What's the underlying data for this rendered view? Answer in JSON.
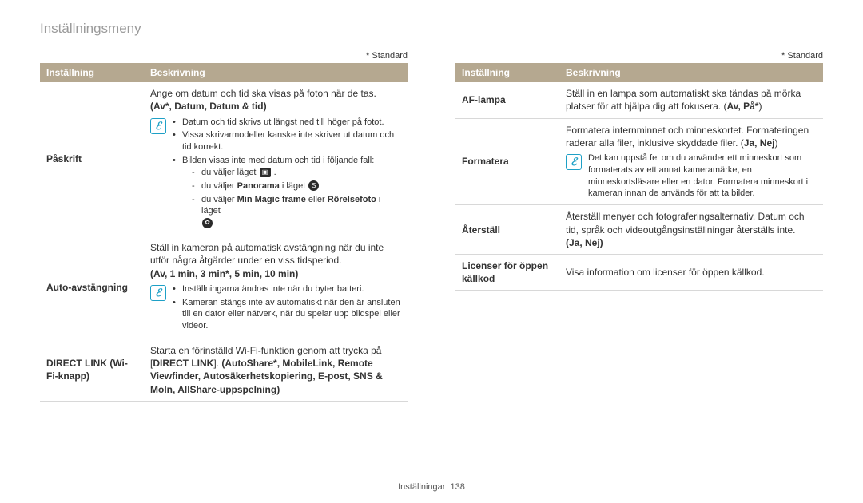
{
  "page": {
    "title": "Inställningsmeny",
    "footer_label": "Inställningar",
    "footer_page": "138"
  },
  "standard_note": "* Standard",
  "headers": {
    "setting": "Inställning",
    "description": "Beskrivning"
  },
  "left": {
    "row1": {
      "name": "Påskrift",
      "desc": "Ange om datum och tid ska visas på foton när de tas.",
      "options": "(Av*, Datum, Datum & tid)",
      "note1": "Datum och tid skrivs ut längst ned till höger på fotot.",
      "note2": "Vissa skrivarmodeller kanske inte skriver ut datum och tid korrekt.",
      "note3": "Bilden visas inte med datum och tid i följande fall:",
      "sub1a": "du väljer läget ",
      "sub2a": "du väljer ",
      "sub2b": "Panorama",
      "sub2c": " i läget ",
      "sub3a": "du väljer ",
      "sub3b": "Min Magic frame",
      "sub3c": " eller ",
      "sub3d": "Rörelsefoto",
      "sub3e": " i läget "
    },
    "row2": {
      "name": "Auto-avstängning",
      "desc": "Ställ in kameran på automatisk avstängning när du inte utför några åtgärder under en viss tidsperiod.",
      "options": "(Av, 1 min, 3 min*, 5 min, 10 min)",
      "note1": "Inställningarna ändras inte när du byter batteri.",
      "note2": "Kameran stängs inte av automatiskt när den är ansluten till en dator eller nätverk, när du spelar upp bildspel eller videor."
    },
    "row3": {
      "name": "DIRECT LINK (Wi-Fi-knapp)",
      "desc_a": "Starta en förinställd Wi-Fi-funktion genom att trycka på [",
      "desc_b": "DIRECT LINK",
      "desc_c": "]. ",
      "opts1": "(AutoShare*, MobileLink, Remote Viewfinder, Autosäkerhetskopiering, E-post, SNS & Moln, AllShare-uppspelning)"
    }
  },
  "right": {
    "row1": {
      "name": "AF-lampa",
      "desc": "Ställ in en lampa som automatiskt ska tändas på mörka platser för att hjälpa dig att fokusera. (",
      "opts": "Av, På*",
      "close": ")"
    },
    "row2": {
      "name": "Formatera",
      "desc": "Formatera internminnet och minneskortet. Formateringen raderar alla filer, inklusive skyddade filer. (",
      "opts": "Ja, Nej",
      "close": ")",
      "note": "Det kan uppstå fel om du använder ett minneskort som formaterats av ett annat kameramärke, en minneskortsläsare eller en dator. Formatera minneskort i kameran innan de används för att ta bilder."
    },
    "row3": {
      "name": "Återställ",
      "desc": "Återställ menyer och fotograferingsalternativ. Datum och tid, språk och videoutgångsinställningar återställs inte.",
      "opts": " (Ja, Nej)"
    },
    "row4": {
      "name": "Licenser för öppen källkod",
      "desc": "Visa information om licenser för öppen källkod."
    }
  },
  "colors": {
    "header_bg": "#b5a890",
    "header_text": "#ffffff",
    "title_color": "#9a9a9a",
    "border_color": "#d8d8d8",
    "note_icon_color": "#1ea0c6"
  }
}
